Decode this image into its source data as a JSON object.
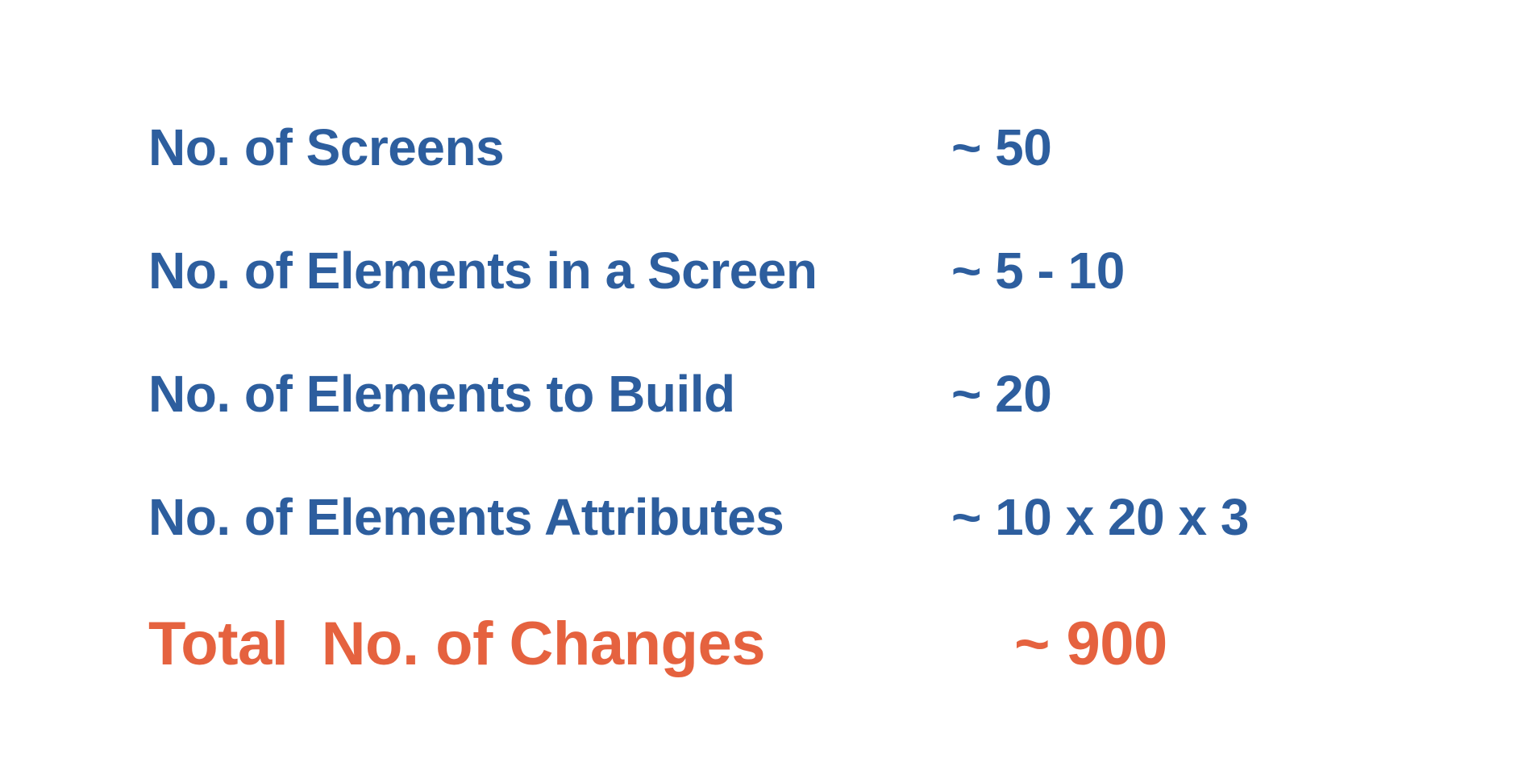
{
  "colors": {
    "primary_text": "#2d5e9e",
    "highlight_text": "#e5623f",
    "background": "#ffffff"
  },
  "rows": [
    {
      "label": "No. of Screens",
      "value": "~ 50"
    },
    {
      "label": "No. of Elements in a Screen",
      "value": "~ 5 - 10"
    },
    {
      "label": "No. of Elements to Build",
      "value": "~ 20"
    },
    {
      "label": "No. of Elements Attributes",
      "value": "~ 10 x 20 x 3"
    }
  ],
  "total": {
    "label": "Total  No. of Changes",
    "value": "~ 900"
  }
}
